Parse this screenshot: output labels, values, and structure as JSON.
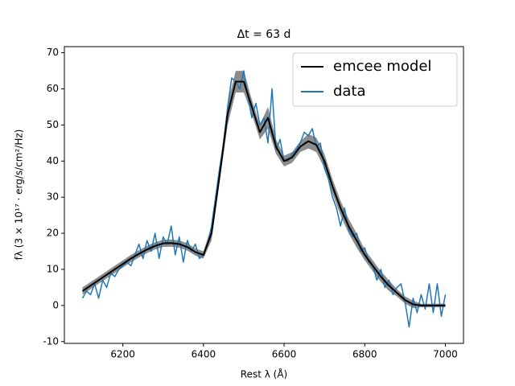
{
  "chart_data": {
    "type": "line",
    "title": "Δt = 63 d",
    "x_label": "Rest λ (Å)",
    "y_label": "fλ  (3 × 10¹⁷ · erg/s/cm²/Hz)",
    "xlim": [
      6055,
      7045
    ],
    "xticks": [
      6200,
      6400,
      6600,
      6800,
      7000
    ],
    "ylim": [
      -10.5,
      71.7
    ],
    "yticks": [
      -10,
      0,
      10,
      20,
      30,
      40,
      50,
      60,
      70
    ],
    "legend": "upper right",
    "series": [
      {
        "name": "emcee model",
        "color": "#000000",
        "band_color": "#808080",
        "x": [
          6100,
          6120,
          6140,
          6160,
          6180,
          6200,
          6220,
          6240,
          6260,
          6280,
          6300,
          6320,
          6340,
          6360,
          6380,
          6400,
          6420,
          6440,
          6460,
          6480,
          6500,
          6520,
          6540,
          6560,
          6580,
          6600,
          6620,
          6640,
          6660,
          6680,
          6700,
          6720,
          6740,
          6760,
          6780,
          6800,
          6820,
          6840,
          6860,
          6880,
          6900,
          6920,
          6940,
          6960,
          6980,
          7000
        ],
        "values": [
          4,
          5.5,
          7,
          8.5,
          10,
          11.5,
          13,
          14.3,
          15.5,
          16.5,
          17.2,
          17.3,
          17,
          16.2,
          14.8,
          14,
          20,
          36,
          53,
          62,
          62,
          55,
          48,
          52,
          44,
          40,
          41,
          44,
          45.5,
          44.5,
          40,
          33,
          27,
          22,
          18,
          14,
          11,
          8,
          5.5,
          3.5,
          1.5,
          0.3,
          0,
          0,
          0,
          0
        ],
        "errors": [
          1,
          1,
          1,
          1,
          1,
          1,
          1,
          1,
          1,
          1,
          1,
          1,
          1,
          1,
          1,
          1,
          2,
          2,
          3,
          3,
          3,
          2,
          2,
          3,
          2,
          1.5,
          1.5,
          1.5,
          2,
          2,
          2,
          2,
          2,
          2,
          2,
          1.5,
          1.5,
          1.5,
          1.5,
          1,
          1,
          1,
          0.5,
          0.5,
          0.5,
          0.5
        ]
      },
      {
        "name": "data",
        "color": "#1f77b4",
        "x": [
          6100,
          6110,
          6120,
          6130,
          6140,
          6150,
          6160,
          6170,
          6180,
          6190,
          6200,
          6210,
          6220,
          6230,
          6240,
          6250,
          6260,
          6270,
          6280,
          6290,
          6300,
          6310,
          6320,
          6330,
          6340,
          6350,
          6360,
          6370,
          6380,
          6390,
          6400,
          6410,
          6420,
          6430,
          6440,
          6450,
          6460,
          6470,
          6480,
          6490,
          6500,
          6510,
          6520,
          6530,
          6540,
          6550,
          6560,
          6570,
          6580,
          6590,
          6600,
          6610,
          6620,
          6630,
          6640,
          6650,
          6660,
          6670,
          6680,
          6690,
          6700,
          6710,
          6720,
          6730,
          6740,
          6750,
          6760,
          6770,
          6780,
          6790,
          6800,
          6810,
          6820,
          6830,
          6840,
          6850,
          6860,
          6870,
          6880,
          6890,
          6900,
          6910,
          6920,
          6930,
          6940,
          6950,
          6960,
          6970,
          6980,
          6990,
          7000
        ],
        "values": [
          2,
          4,
          3,
          6,
          2,
          7,
          5,
          9,
          8,
          10,
          11,
          12,
          11,
          14,
          17,
          13,
          18,
          15,
          20,
          13,
          19,
          17,
          22,
          14,
          19,
          12,
          18,
          15,
          17,
          13,
          14,
          17,
          22,
          30,
          38,
          45,
          55,
          63,
          62,
          60,
          65,
          58,
          52,
          56,
          50,
          52,
          45,
          60,
          43,
          46,
          40,
          40,
          42,
          43,
          45,
          48,
          47,
          49,
          44,
          45,
          38,
          35,
          30,
          27,
          22,
          27,
          21,
          19,
          20,
          15,
          16,
          12,
          11,
          7,
          10,
          5,
          7,
          3,
          5,
          6,
          1,
          -6,
          2,
          -2,
          3,
          -1,
          6,
          -2,
          6,
          -3,
          3
        ]
      }
    ]
  }
}
